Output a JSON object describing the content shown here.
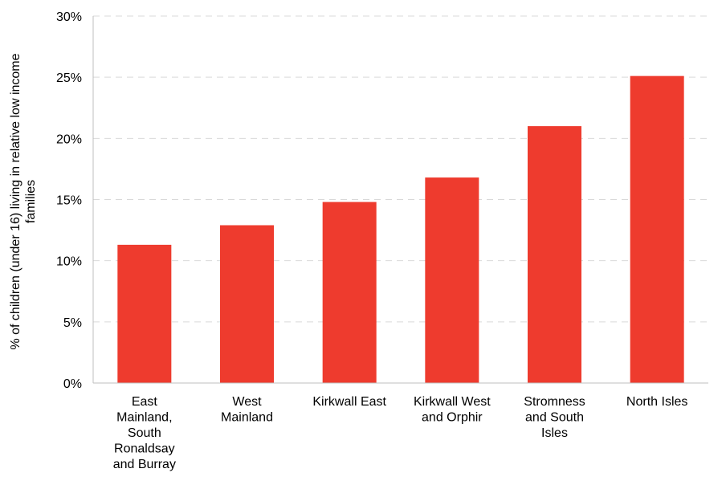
{
  "chart_data": {
    "type": "bar",
    "categories": [
      [
        "East",
        "Mainland,",
        "South",
        "Ronaldsay",
        "and Burray"
      ],
      [
        "West",
        "Mainland"
      ],
      [
        "Kirkwall East"
      ],
      [
        "Kirkwall West",
        "and Orphir"
      ],
      [
        "Stromness",
        "and South",
        "Isles"
      ],
      [
        "North Isles"
      ]
    ],
    "values": [
      11.3,
      12.9,
      14.8,
      16.8,
      21.0,
      25.1
    ],
    "ylabel_lines": [
      "% of children (under 16) living in relative low income",
      "families"
    ],
    "ylim": [
      0,
      30
    ],
    "yticks": [
      0,
      5,
      10,
      15,
      20,
      25,
      30
    ],
    "ytick_labels": [
      "0%",
      "5%",
      "10%",
      "15%",
      "20%",
      "25%",
      "30%"
    ],
    "grid": true,
    "bar_color": "#ee3b2e"
  }
}
